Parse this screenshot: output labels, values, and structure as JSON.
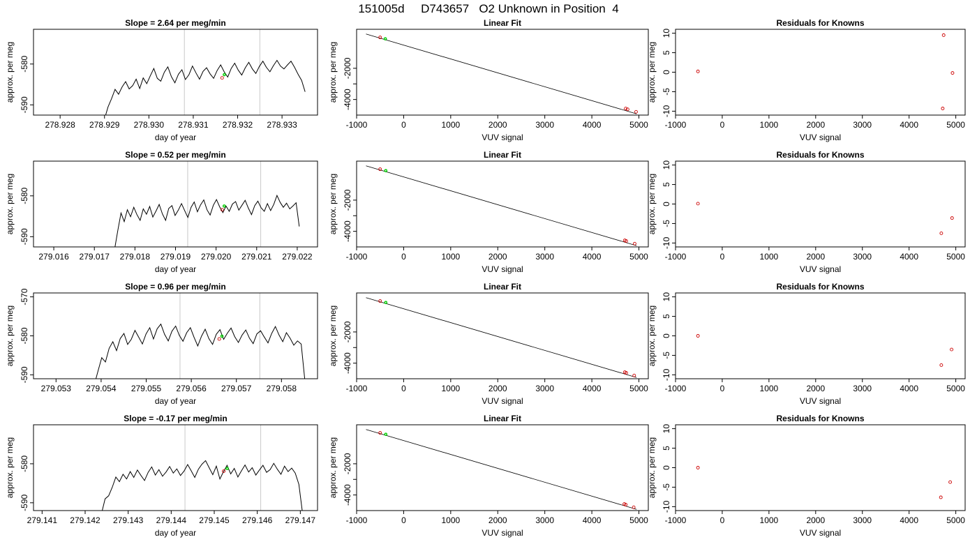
{
  "title": "151005d     D743657   O2 Unknown in Position  4",
  "colors": {
    "trace": "#000000",
    "known_points": "#cc0000",
    "unknown_points": "#00cc00",
    "sample_window": "#c8c8c8",
    "frame": "#000000"
  },
  "chart_data": [
    {
      "type": "line",
      "title": "Slope =  2.64  per meg/min",
      "xlabel": "day of year",
      "ylabel": "approx. per meg",
      "xlim": [
        278.9274,
        278.9338
      ],
      "ylim": [
        -592.5,
        -571.5
      ],
      "xticks": [
        278.928,
        278.929,
        278.93,
        278.931,
        278.932,
        278.933
      ],
      "xtick_labels": [
        "278.928",
        "278.929",
        "278.930",
        "278.931",
        "278.932",
        "278.933"
      ],
      "yticks": [
        -590,
        -580
      ],
      "ytick_labels": [
        "-590",
        "-580"
      ],
      "window_lines": [
        278.9308,
        278.9325
      ],
      "trace": {
        "x_start": 278.929,
        "x_end": 278.93352,
        "y": [
          -593.5,
          -590.5,
          -588.5,
          -586.2,
          -587.4,
          -585.6,
          -584.3,
          -586.1,
          -585.3,
          -583.7,
          -586.0,
          -583.4,
          -584.8,
          -582.9,
          -581.1,
          -583.5,
          -584.2,
          -582.0,
          -580.7,
          -583.1,
          -584.6,
          -582.5,
          -581.4,
          -583.8,
          -582.6,
          -580.5,
          -582.2,
          -583.7,
          -581.8,
          -580.9,
          -582.4,
          -583.5,
          -581.6,
          -580.2,
          -581.9,
          -583.2,
          -581.1,
          -579.8,
          -581.5,
          -582.7,
          -580.9,
          -579.6,
          -581.2,
          -582.3,
          -580.6,
          -579.3,
          -580.8,
          -581.9,
          -580.4,
          -579.1,
          -580.5,
          -581.2,
          -580.2,
          -579.3,
          -580.8,
          -582.5,
          -584.0,
          -586.8
        ]
      },
      "known_points": [
        {
          "x": 278.93165,
          "y": -583.4
        }
      ],
      "unknown_points": [
        {
          "x": 278.9317,
          "y": -582.6
        }
      ]
    },
    {
      "type": "scatter",
      "title": "Linear Fit",
      "xlabel": "VUV signal",
      "ylabel": "approx. per meg",
      "xlim": [
        -1000,
        5200
      ],
      "ylim": [
        -5000,
        500
      ],
      "xticks": [
        -1000,
        0,
        1000,
        2000,
        3000,
        4000,
        5000
      ],
      "xtick_labels": [
        "-1000",
        "0",
        "1000",
        "2000",
        "3000",
        "4000",
        "5000"
      ],
      "yticks": [
        -4000,
        -3000,
        -2000
      ],
      "ytick_labels": [
        "-4000",
        "",
        "-2000"
      ],
      "fit_line": {
        "x": [
          -800,
          4950
        ],
        "y": [
          200,
          -4920
        ]
      },
      "known_points": [
        {
          "x": -500,
          "y": -20
        },
        {
          "x": 4720,
          "y": -4580
        },
        {
          "x": 4760,
          "y": -4630
        },
        {
          "x": 4940,
          "y": -4790
        }
      ],
      "unknown_points": [
        {
          "x": -390,
          "y": -110
        }
      ]
    },
    {
      "type": "scatter",
      "title": "Residuals for Knowns",
      "xlabel": "VUV signal",
      "ylabel": "approx. per meg",
      "xlim": [
        -1000,
        5200
      ],
      "ylim": [
        -11,
        11
      ],
      "xticks": [
        -1000,
        0,
        1000,
        2000,
        3000,
        4000,
        5000
      ],
      "xtick_labels": [
        "-1000",
        "0",
        "1000",
        "2000",
        "3000",
        "4000",
        "5000"
      ],
      "yticks": [
        -10,
        -5,
        0,
        5,
        10
      ],
      "ytick_labels": [
        "-10",
        "-5",
        "0",
        "5",
        "10"
      ],
      "known_points": [
        {
          "x": -520,
          "y": 0.2
        },
        {
          "x": 4740,
          "y": 9.5
        },
        {
          "x": 4930,
          "y": -0.2
        },
        {
          "x": 4720,
          "y": -9.3
        }
      ]
    },
    {
      "type": "line",
      "title": "Slope =  0.52  per meg/min",
      "xlabel": "day of year",
      "ylabel": "approx. per meg",
      "xlim": [
        279.0155,
        279.0225
      ],
      "ylim": [
        -592.5,
        -571.5
      ],
      "xticks": [
        279.016,
        279.017,
        279.018,
        279.019,
        279.02,
        279.021,
        279.022
      ],
      "xtick_labels": [
        "279.016",
        "279.017",
        "279.018",
        "279.019",
        "279.020",
        "279.021",
        "279.022"
      ],
      "yticks": [
        -590,
        -580
      ],
      "ytick_labels": [
        "-590",
        "-580"
      ],
      "window_lines": [
        279.0193,
        279.0211
      ],
      "trace": {
        "x_start": 279.0175,
        "x_end": 279.02205,
        "y": [
          -593.0,
          -588.5,
          -584.2,
          -586.3,
          -583.4,
          -585.1,
          -582.8,
          -584.6,
          -586.0,
          -583.2,
          -584.5,
          -582.6,
          -585.2,
          -583.7,
          -582.1,
          -584.4,
          -586.0,
          -583.1,
          -582.4,
          -584.8,
          -583.5,
          -581.9,
          -583.6,
          -585.3,
          -582.8,
          -581.5,
          -583.9,
          -582.2,
          -581.0,
          -583.4,
          -584.7,
          -582.3,
          -580.9,
          -582.7,
          -584.1,
          -582.5,
          -583.8,
          -582.0,
          -581.4,
          -583.5,
          -582.3,
          -581.1,
          -583.0,
          -584.6,
          -582.4,
          -581.3,
          -582.9,
          -583.8,
          -581.9,
          -583.6,
          -582.1,
          -579.9,
          -581.6,
          -582.8,
          -581.8,
          -583.2,
          -582.5,
          -581.7,
          -587.5
        ]
      },
      "known_points": [
        {
          "x": 279.02015,
          "y": -583.4
        }
      ],
      "unknown_points": [
        {
          "x": 279.0202,
          "y": -582.5
        }
      ]
    },
    {
      "type": "scatter",
      "title": "Linear Fit",
      "xlabel": "VUV signal",
      "ylabel": "approx. per meg",
      "xlim": [
        -1000,
        5200
      ],
      "ylim": [
        -5000,
        500
      ],
      "xticks": [
        -1000,
        0,
        1000,
        2000,
        3000,
        4000,
        5000
      ],
      "xtick_labels": [
        "-1000",
        "0",
        "1000",
        "2000",
        "3000",
        "4000",
        "5000"
      ],
      "yticks": [
        -4000,
        -3000,
        -2000
      ],
      "ytick_labels": [
        "-4000",
        "",
        "-2000"
      ],
      "fit_line": {
        "x": [
          -800,
          4950
        ],
        "y": [
          200,
          -4920
        ]
      },
      "known_points": [
        {
          "x": -500,
          "y": -20
        },
        {
          "x": 4700,
          "y": -4580
        },
        {
          "x": 4730,
          "y": -4620
        },
        {
          "x": 4910,
          "y": -4790
        }
      ],
      "unknown_points": [
        {
          "x": -380,
          "y": -110
        }
      ]
    },
    {
      "type": "scatter",
      "title": "Residuals for Knowns",
      "xlabel": "VUV signal",
      "ylabel": "approx. per meg",
      "xlim": [
        -1000,
        5200
      ],
      "ylim": [
        -11,
        11
      ],
      "xticks": [
        -1000,
        0,
        1000,
        2000,
        3000,
        4000,
        5000
      ],
      "xtick_labels": [
        "-1000",
        "0",
        "1000",
        "2000",
        "3000",
        "4000",
        "5000"
      ],
      "yticks": [
        -10,
        -5,
        0,
        5,
        10
      ],
      "ytick_labels": [
        "-10",
        "-5",
        "0",
        "5",
        "10"
      ],
      "known_points": [
        {
          "x": -520,
          "y": 0.1
        },
        {
          "x": 4690,
          "y": -7.5
        },
        {
          "x": 4920,
          "y": -3.6
        }
      ]
    },
    {
      "type": "line",
      "title": "Slope =  0.96  per meg/min",
      "xlabel": "day of year",
      "ylabel": "approx. per meg",
      "xlim": [
        279.0525,
        279.0588
      ],
      "ylim": [
        -591,
        -569
      ],
      "xticks": [
        279.053,
        279.054,
        279.055,
        279.056,
        279.057,
        279.058
      ],
      "xtick_labels": [
        "279.053",
        "279.054",
        "279.055",
        "279.056",
        "279.057",
        "279.058"
      ],
      "yticks": [
        -590,
        -580,
        -570
      ],
      "ytick_labels": [
        "-590",
        "-580",
        "-570"
      ],
      "window_lines": [
        279.05575,
        279.05752
      ],
      "trace": {
        "x_start": 279.05385,
        "x_end": 279.05852,
        "y": [
          -592.5,
          -589.0,
          -585.6,
          -586.7,
          -583.2,
          -581.5,
          -583.8,
          -580.7,
          -579.4,
          -582.2,
          -580.9,
          -578.6,
          -580.3,
          -582.1,
          -579.5,
          -577.9,
          -580.8,
          -578.2,
          -577.0,
          -579.6,
          -581.3,
          -578.8,
          -577.5,
          -579.9,
          -581.4,
          -579.2,
          -577.9,
          -580.4,
          -582.6,
          -580.1,
          -578.3,
          -580.7,
          -582.2,
          -579.6,
          -578.4,
          -580.9,
          -579.3,
          -578.0,
          -580.2,
          -581.7,
          -579.8,
          -578.5,
          -580.6,
          -582.0,
          -579.5,
          -578.7,
          -580.3,
          -581.8,
          -579.4,
          -577.6,
          -579.8,
          -581.5,
          -579.2,
          -580.6,
          -582.4,
          -581.3,
          -582.1,
          -591.5
        ]
      },
      "known_points": [
        {
          "x": 279.05662,
          "y": -580.8
        }
      ],
      "unknown_points": [
        {
          "x": 279.05668,
          "y": -580.1
        }
      ]
    },
    {
      "type": "scatter",
      "title": "Linear Fit",
      "xlabel": "VUV signal",
      "ylabel": "approx. per meg",
      "xlim": [
        -1000,
        5200
      ],
      "ylim": [
        -5000,
        500
      ],
      "xticks": [
        -1000,
        0,
        1000,
        2000,
        3000,
        4000,
        5000
      ],
      "xtick_labels": [
        "-1000",
        "0",
        "1000",
        "2000",
        "3000",
        "4000",
        "5000"
      ],
      "yticks": [
        -4000,
        -3000,
        -2000
      ],
      "ytick_labels": [
        "-4000",
        "",
        "-2000"
      ],
      "fit_line": {
        "x": [
          -800,
          4950
        ],
        "y": [
          200,
          -4920
        ]
      },
      "known_points": [
        {
          "x": -500,
          "y": -20
        },
        {
          "x": 4700,
          "y": -4580
        },
        {
          "x": 4730,
          "y": -4620
        },
        {
          "x": 4900,
          "y": -4790
        }
      ],
      "unknown_points": [
        {
          "x": -380,
          "y": -110
        }
      ]
    },
    {
      "type": "scatter",
      "title": "Residuals for Knowns",
      "xlabel": "VUV signal",
      "ylabel": "approx. per meg",
      "xlim": [
        -1000,
        5200
      ],
      "ylim": [
        -11,
        11
      ],
      "xticks": [
        -1000,
        0,
        1000,
        2000,
        3000,
        4000,
        5000
      ],
      "xtick_labels": [
        "-1000",
        "0",
        "1000",
        "2000",
        "3000",
        "4000",
        "5000"
      ],
      "yticks": [
        -10,
        -5,
        0,
        5,
        10
      ],
      "ytick_labels": [
        "-10",
        "-5",
        "0",
        "5",
        "10"
      ],
      "known_points": [
        {
          "x": -520,
          "y": 0.0
        },
        {
          "x": 4690,
          "y": -7.5
        },
        {
          "x": 4910,
          "y": -3.5
        }
      ]
    },
    {
      "type": "line",
      "title": "Slope =  -0.17  per meg/min",
      "xlabel": "day of year",
      "ylabel": "approx. per meg",
      "xlim": [
        279.1408,
        279.1474
      ],
      "ylim": [
        -592,
        -570
      ],
      "xticks": [
        279.141,
        279.142,
        279.143,
        279.144,
        279.145,
        279.146,
        279.147
      ],
      "xtick_labels": [
        "279.141",
        "279.142",
        "279.143",
        "279.144",
        "279.145",
        "279.146",
        "279.147"
      ],
      "yticks": [
        -590,
        -580
      ],
      "ytick_labels": [
        "-590",
        "-580"
      ],
      "window_lines": [
        279.14432,
        279.14608
      ],
      "trace": {
        "x_start": 279.14238,
        "x_end": 279.14705,
        "y": [
          -592.8,
          -589.0,
          -588.2,
          -586.0,
          -583.4,
          -584.6,
          -582.7,
          -583.9,
          -582.0,
          -583.5,
          -581.6,
          -583.0,
          -584.3,
          -582.2,
          -580.8,
          -582.9,
          -581.5,
          -583.2,
          -582.1,
          -580.7,
          -582.4,
          -581.3,
          -583.0,
          -581.9,
          -580.2,
          -581.8,
          -583.5,
          -581.4,
          -580.1,
          -579.2,
          -581.0,
          -582.8,
          -580.6,
          -583.9,
          -582.0,
          -580.4,
          -582.6,
          -581.2,
          -583.4,
          -581.8,
          -580.3,
          -582.1,
          -581.0,
          -582.9,
          -581.6,
          -580.4,
          -582.2,
          -581.5,
          -579.9,
          -581.4,
          -582.7,
          -580.6,
          -582.0,
          -581.1,
          -582.4,
          -585.3,
          -592.5
        ]
      },
      "known_points": [
        {
          "x": 279.14522,
          "y": -581.9
        }
      ],
      "unknown_points": [
        {
          "x": 279.1453,
          "y": -581.2
        }
      ]
    },
    {
      "type": "scatter",
      "title": "Linear Fit",
      "xlabel": "VUV signal",
      "ylabel": "approx. per meg",
      "xlim": [
        -1000,
        5200
      ],
      "ylim": [
        -5000,
        500
      ],
      "xticks": [
        -1000,
        0,
        1000,
        2000,
        3000,
        4000,
        5000
      ],
      "xtick_labels": [
        "-1000",
        "0",
        "1000",
        "2000",
        "3000",
        "4000",
        "5000"
      ],
      "yticks": [
        -4000,
        -3000,
        -2000
      ],
      "ytick_labels": [
        "-4000",
        "",
        "-2000"
      ],
      "fit_line": {
        "x": [
          -800,
          4950
        ],
        "y": [
          200,
          -4920
        ]
      },
      "known_points": [
        {
          "x": -500,
          "y": -20
        },
        {
          "x": 4690,
          "y": -4580
        },
        {
          "x": 4720,
          "y": -4620
        },
        {
          "x": 4890,
          "y": -4790
        }
      ],
      "unknown_points": [
        {
          "x": -380,
          "y": -110
        }
      ]
    },
    {
      "type": "scatter",
      "title": "Residuals for Knowns",
      "xlabel": "VUV signal",
      "ylabel": "approx. per meg",
      "xlim": [
        -1000,
        5200
      ],
      "ylim": [
        -11,
        11
      ],
      "xticks": [
        -1000,
        0,
        1000,
        2000,
        3000,
        4000,
        5000
      ],
      "xtick_labels": [
        "-1000",
        "0",
        "1000",
        "2000",
        "3000",
        "4000",
        "5000"
      ],
      "yticks": [
        -10,
        -5,
        0,
        5,
        10
      ],
      "ytick_labels": [
        "-10",
        "-5",
        "0",
        "5",
        "10"
      ],
      "known_points": [
        {
          "x": -520,
          "y": 0.0
        },
        {
          "x": 4680,
          "y": -7.6
        },
        {
          "x": 4880,
          "y": -3.7
        }
      ]
    }
  ]
}
